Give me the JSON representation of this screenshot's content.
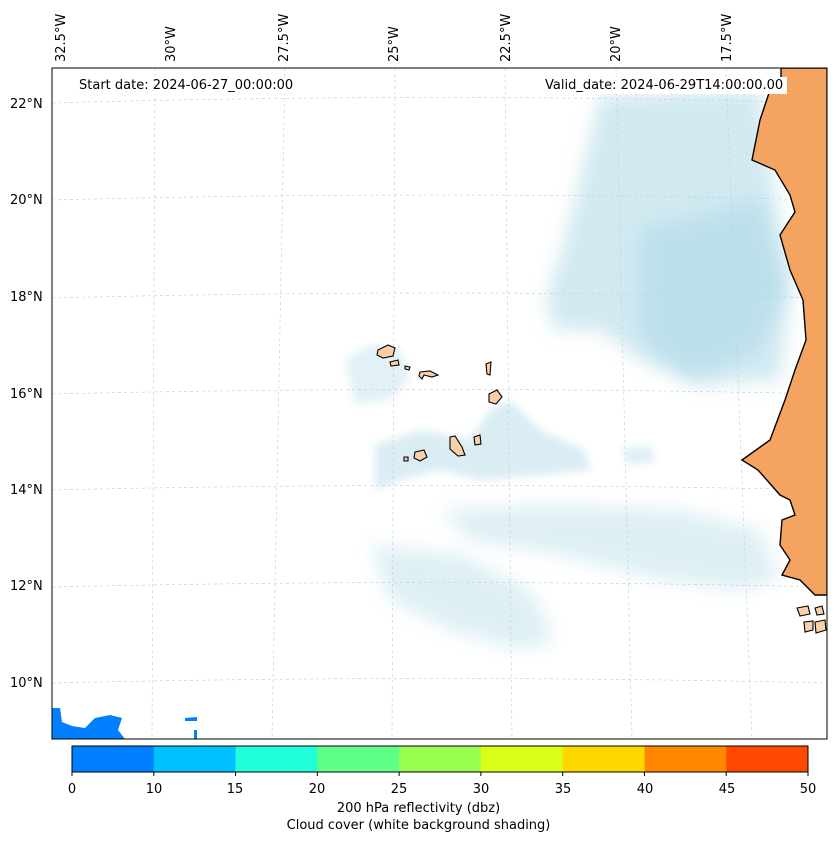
{
  "map": {
    "start_date_label": "Start date: 2024-06-27_00:00:00",
    "valid_date_label": "Valid_date: 2024-06-29T14:00:00.00",
    "longitude_labels": [
      "32.5°W",
      "30°W",
      "27.5°W",
      "25°W",
      "22.5°W",
      "20°W",
      "17.5°W"
    ],
    "latitude_labels": [
      "22°N",
      "20°N",
      "18°N",
      "16°N",
      "14°N",
      "12°N",
      "10°N"
    ],
    "colors": {
      "land": "#f4a460",
      "islands": "#f8cfa8",
      "cloud": "#add8e6",
      "coast": "#000000",
      "grid": "#c8c8c8",
      "frame": "#000000"
    }
  },
  "colorbar": {
    "ticks": [
      "0",
      "10",
      "15",
      "20",
      "25",
      "30",
      "35",
      "40",
      "45",
      "50"
    ],
    "colors": [
      "#0080ff",
      "#00c0ff",
      "#20ffd8",
      "#60ff88",
      "#98ff50",
      "#d8ff18",
      "#ffd800",
      "#ff8800",
      "#ff4800"
    ],
    "label_line1": "200 hPa reflectivity (dbz)",
    "label_line2": "Cloud cover (white background shading)"
  }
}
